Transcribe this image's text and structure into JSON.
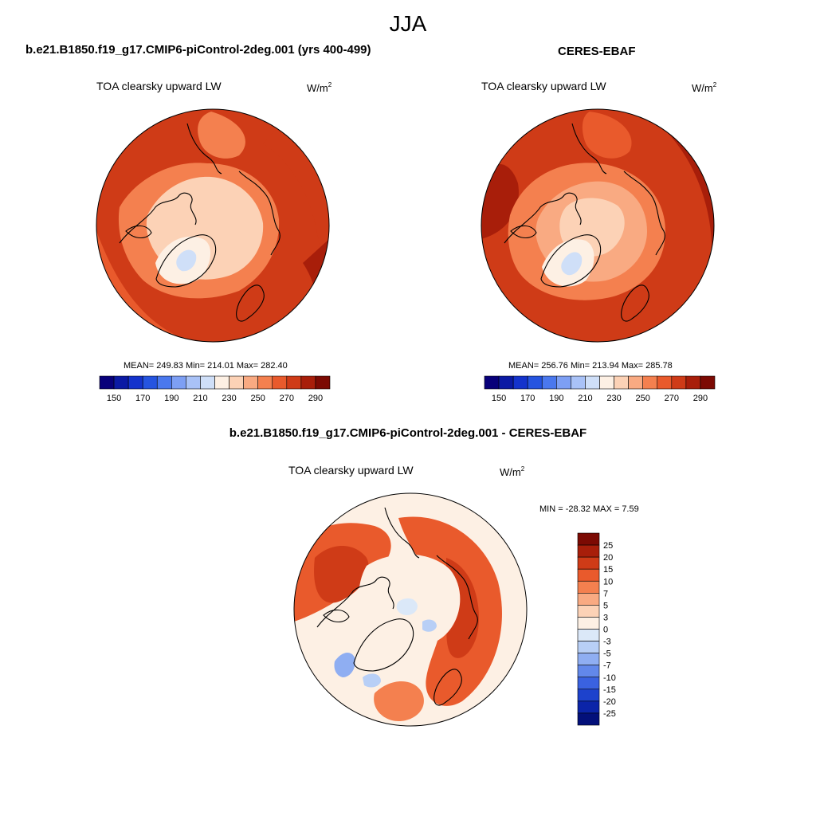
{
  "season": "JJA",
  "panels": {
    "model": {
      "title": "b.e21.B1850.f19_g17.CMIP6-piControl-2deg.001 (yrs 400-499)",
      "variable": "TOA clearsky upward LW",
      "units": "W/m",
      "units_power": "2",
      "stats": "MEAN= 249.83  Min= 214.01  Max= 282.40",
      "mean": 249.83,
      "min": 214.01,
      "max": 282.4
    },
    "obs": {
      "title": "CERES-EBAF",
      "variable": "TOA clearsky upward LW",
      "units": "W/m",
      "units_power": "2",
      "stats": "MEAN= 256.76  Min= 213.94  Max= 285.78",
      "mean": 256.76,
      "min": 213.94,
      "max": 285.78
    },
    "diff": {
      "title": "b.e21.B1850.f19_g17.CMIP6-piControl-2deg.001 - CERES-EBAF",
      "variable": "TOA clearsky upward LW",
      "units": "W/m",
      "units_power": "2",
      "stats": "MIN = -28.32 MAX =   7.59",
      "min": -28.32,
      "max": 7.59
    }
  },
  "chart_data": [
    {
      "type": "heatmap",
      "projection": "north-polar-stereographic",
      "title": "b.e21.B1850.f19_g17.CMIP6-piControl-2deg.001 (yrs 400-499)",
      "field": "TOA clearsky upward LW",
      "units": "W/m^2",
      "levels": [
        150,
        160,
        170,
        180,
        190,
        200,
        210,
        220,
        230,
        240,
        250,
        260,
        270,
        280,
        290
      ],
      "colorbar_tick_labels": [
        "150",
        "170",
        "190",
        "210",
        "230",
        "250",
        "270",
        "290"
      ],
      "colors": [
        "#08007a",
        "#0b1aa4",
        "#1433cc",
        "#2554e0",
        "#4a78ee",
        "#7d9ff4",
        "#a9c2f7",
        "#cfdff8",
        "#fdf0e4",
        "#fcd2b6",
        "#f9aa82",
        "#f4804f",
        "#e95a2c",
        "#cf3b17",
        "#a81e0a",
        "#7c0a03"
      ],
      "mean": 249.83,
      "min": 214.01,
      "max": 282.4
    },
    {
      "type": "heatmap",
      "projection": "north-polar-stereographic",
      "title": "CERES-EBAF",
      "field": "TOA clearsky upward LW",
      "units": "W/m^2",
      "levels": [
        150,
        160,
        170,
        180,
        190,
        200,
        210,
        220,
        230,
        240,
        250,
        260,
        270,
        280,
        290
      ],
      "colorbar_tick_labels": [
        "150",
        "170",
        "190",
        "210",
        "230",
        "250",
        "270",
        "290"
      ],
      "colors": [
        "#08007a",
        "#0b1aa4",
        "#1433cc",
        "#2554e0",
        "#4a78ee",
        "#7d9ff4",
        "#a9c2f7",
        "#cfdff8",
        "#fdf0e4",
        "#fcd2b6",
        "#f9aa82",
        "#f4804f",
        "#e95a2c",
        "#cf3b17",
        "#a81e0a",
        "#7c0a03"
      ],
      "mean": 256.76,
      "min": 213.94,
      "max": 285.78
    },
    {
      "type": "heatmap",
      "projection": "north-polar-stereographic",
      "title": "b.e21.B1850.f19_g17.CMIP6-piControl-2deg.001 - CERES-EBAF",
      "field": "TOA clearsky upward LW",
      "units": "W/m^2",
      "levels": [
        -25,
        -20,
        -15,
        -10,
        -7,
        -5,
        -3,
        0,
        3,
        5,
        7,
        10,
        15,
        20,
        25
      ],
      "colorbar_tick_labels": [
        "25",
        "20",
        "15",
        "10",
        "7",
        "5",
        "3",
        "0",
        "-3",
        "-5",
        "-7",
        "-10",
        "-15",
        "-20",
        "-25"
      ],
      "colors": [
        "#7c0a03",
        "#a81e0a",
        "#cf3b17",
        "#e95a2c",
        "#f4804f",
        "#f9aa82",
        "#fcd2b6",
        "#fdf0e4",
        "#dbe8f8",
        "#b8cff6",
        "#8faef2",
        "#6288ea",
        "#3a62e0",
        "#1d42cc",
        "#0b24a8",
        "#03107a"
      ],
      "min": -28.32,
      "max": 7.59
    }
  ]
}
